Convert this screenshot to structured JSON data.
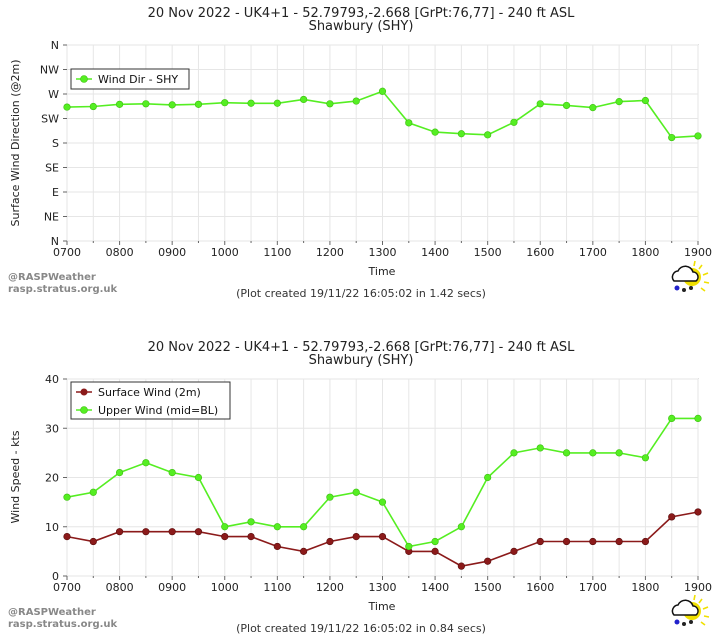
{
  "chart_data": [
    {
      "type": "line",
      "title": "20 Nov 2022 - UK4+1 - 52.79793,-2.668 [GrPt:76,77]  - 240 ft ASL",
      "subtitle": "Shawbury (SHY)",
      "xlabel": "Time",
      "ylabel": "Surface Wind Direction (@2m)",
      "x": [
        "0700",
        "0730",
        "0800",
        "0830",
        "0900",
        "0930",
        "1000",
        "1030",
        "1100",
        "1130",
        "1200",
        "1230",
        "1300",
        "1330",
        "1400",
        "1430",
        "1500",
        "1530",
        "1600",
        "1630",
        "1700",
        "1730",
        "1800",
        "1830",
        "1900"
      ],
      "xticks": [
        "0700",
        "0800",
        "0900",
        "1000",
        "1100",
        "1200",
        "1300",
        "1400",
        "1500",
        "1600",
        "1700",
        "1800",
        "1900"
      ],
      "yticks": [
        "N",
        "SE",
        "E",
        "NE",
        "N",
        "NW",
        "W",
        "SW",
        "S",
        "SE",
        "E",
        "NE",
        "N"
      ],
      "yticks_top_to_bottom": [
        "N",
        "NW",
        "W",
        "SW",
        "S",
        "SE",
        "E",
        "NE",
        "N"
      ],
      "ylim": [
        0,
        360
      ],
      "y_unit": "degrees (direction)",
      "grid": true,
      "legend_position": "top-left",
      "series": [
        {
          "name": "Wind Dir - SHY",
          "color": "#55ee22",
          "values": [
            246,
            247,
            251,
            252,
            250,
            251,
            254,
            253,
            253,
            260,
            252,
            257,
            275,
            217,
            200,
            197,
            195,
            218,
            252,
            249,
            245,
            256,
            258,
            190,
            193
          ]
        }
      ],
      "watermark": "@RASPWeather\nrasp.stratus.org.uk",
      "footer": "(Plot created 19/11/22 16:05:02 in 1.42 secs)"
    },
    {
      "type": "line",
      "title": "20 Nov 2022 - UK4+1 - 52.79793,-2.668 [GrPt:76,77]  - 240 ft ASL",
      "subtitle": "Shawbury (SHY)",
      "xlabel": "Time",
      "ylabel": "Wind Speed - kts",
      "x": [
        "0700",
        "0730",
        "0800",
        "0830",
        "0900",
        "0930",
        "1000",
        "1030",
        "1100",
        "1130",
        "1200",
        "1230",
        "1300",
        "1330",
        "1400",
        "1430",
        "1500",
        "1530",
        "1600",
        "1630",
        "1700",
        "1730",
        "1800",
        "1830",
        "1900"
      ],
      "xticks": [
        "0700",
        "0800",
        "0900",
        "1000",
        "1100",
        "1200",
        "1300",
        "1400",
        "1500",
        "1600",
        "1700",
        "1800",
        "1900"
      ],
      "yticks": [
        "0",
        "10",
        "20",
        "30",
        "40"
      ],
      "ylim": [
        0,
        40
      ],
      "grid": true,
      "legend_position": "top-left",
      "series": [
        {
          "name": "Surface Wind (2m)",
          "color": "#8b1a1a",
          "values": [
            8,
            7,
            9,
            9,
            9,
            9,
            8,
            8,
            6,
            5,
            7,
            8,
            8,
            5,
            5,
            2,
            3,
            5,
            7,
            7,
            7,
            7,
            7,
            12,
            13
          ]
        },
        {
          "name": "Upper Wind (mid=BL)",
          "color": "#55ee22",
          "values": [
            16,
            17,
            21,
            23,
            21,
            20,
            10,
            11,
            10,
            10,
            16,
            17,
            15,
            6,
            7,
            10,
            20,
            25,
            26,
            25,
            25,
            25,
            24,
            32,
            32
          ]
        }
      ],
      "watermark": "@RASPWeather\nrasp.stratus.org.uk",
      "footer": "(Plot created 19/11/22 16:05:02 in 0.84 secs)"
    }
  ]
}
